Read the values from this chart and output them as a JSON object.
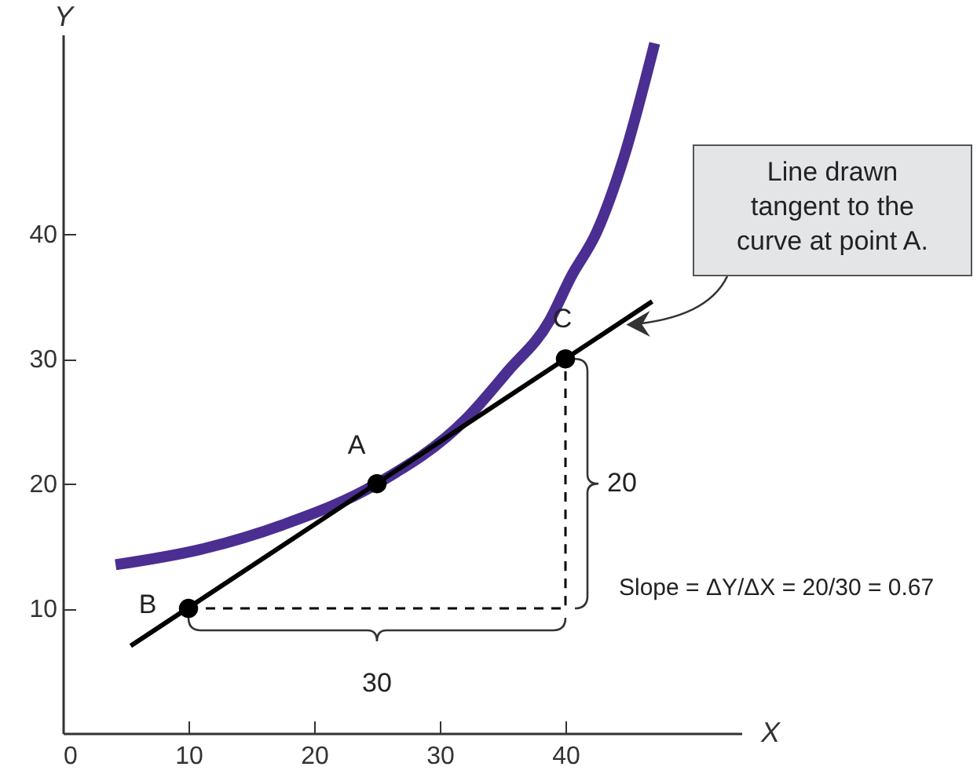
{
  "chart_data": {
    "type": "line",
    "xlabel": "X",
    "ylabel": "Y",
    "xlim": [
      0,
      54
    ],
    "ylim": [
      0,
      56
    ],
    "xticks": [
      0,
      10,
      20,
      30,
      40
    ],
    "yticks": [
      10,
      20,
      30,
      40
    ],
    "grid": false,
    "series": [
      {
        "type": "line",
        "color": "#4b2e91",
        "x": [
          4.2,
          11.25,
          17.5,
          25,
          32.1,
          35.4,
          38.75,
          40.4,
          42.5,
          44.6,
          47.1
        ],
        "values": [
          13.5,
          14.8,
          16.7,
          20,
          25.2,
          29.0,
          33.1,
          36.5,
          40.2,
          46.0,
          55.3
        ]
      },
      {
        "type": "line",
        "color": "#000000",
        "x": [
          5.4,
          46.9
        ],
        "values": [
          7.0,
          34.6
        ]
      },
      {
        "type": "line",
        "color": "#000000",
        "line_style": "dashed",
        "x": [
          10,
          40,
          40
        ],
        "values": [
          10,
          10,
          30
        ]
      },
      {
        "type": "scatter",
        "color": "#000000",
        "marker": "circle",
        "x": [
          10,
          25,
          40
        ],
        "values": [
          10,
          20,
          30
        ]
      }
    ],
    "annotations": [
      {
        "text": "A",
        "x": 25,
        "y": 20
      },
      {
        "text": "B",
        "x": 10,
        "y": 10
      },
      {
        "text": "C",
        "x": 40,
        "y": 30
      },
      {
        "text": "20",
        "x": 40,
        "y": 20
      },
      {
        "text": "30",
        "x": 25,
        "y": 10
      },
      {
        "text": "Line drawn tangent to the curve at point A.",
        "x": 44.5,
        "y": 33.0
      },
      "Slope = ΔY/ΔX = 20/30 = 0.67"
    ]
  }
}
